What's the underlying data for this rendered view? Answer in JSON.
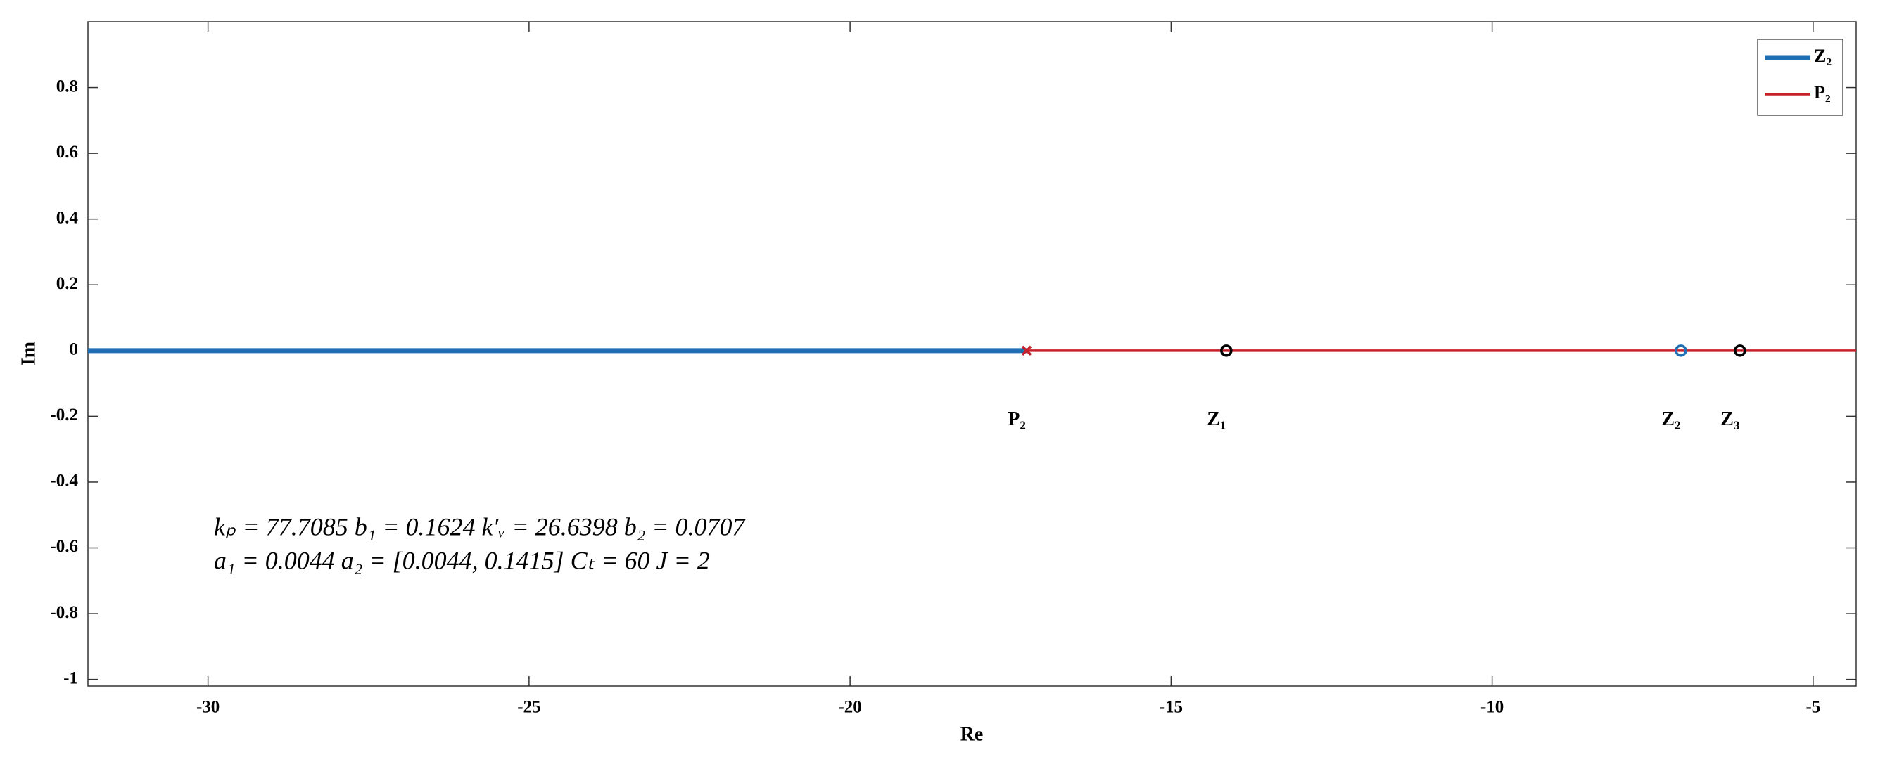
{
  "chart_data": {
    "type": "line",
    "xlabel": "Re",
    "ylabel": "Im",
    "xlim": [
      -31.87,
      -4.33
    ],
    "ylim": [
      -1.02,
      1.0
    ],
    "xticks": [
      -30,
      -25,
      -20,
      -15,
      -10,
      -5
    ],
    "yticks": [
      -1,
      -0.8,
      -0.6,
      -0.4,
      -0.2,
      0,
      0.2,
      0.4,
      0.6,
      0.8
    ],
    "legend": "upper right",
    "series": [
      {
        "name": "Z₂",
        "color": "#1f6fb2",
        "x": [
          -31.87,
          -17.25
        ],
        "values": [
          0,
          0
        ]
      },
      {
        "name": "P₂",
        "color": "#c8202a",
        "x": [
          -17.25,
          -4.33
        ],
        "values": [
          0,
          0
        ]
      }
    ],
    "points": [
      {
        "label": "P₂",
        "x": -17.25,
        "y": 0,
        "marker": "x",
        "color": "#c8202a"
      },
      {
        "label": "Z₁",
        "x": -14.14,
        "y": 0,
        "marker": "o",
        "color": "#000000"
      },
      {
        "label": "Z₂",
        "x": -7.06,
        "y": 0,
        "marker": "o",
        "color": "#1f6fb2"
      },
      {
        "label": "Z₃",
        "x": -6.14,
        "y": 0,
        "marker": "o",
        "color": "#000000"
      }
    ],
    "annotations": [
      "kₚ = 77.7085  b₁ = 0.1624  k′ᵥ = 26.6398  b₂ = 0.0707",
      "a₁ = 0.0044  a₂ = [0.0044, 0.1415]  Cₜ = 60  J = 2"
    ]
  }
}
